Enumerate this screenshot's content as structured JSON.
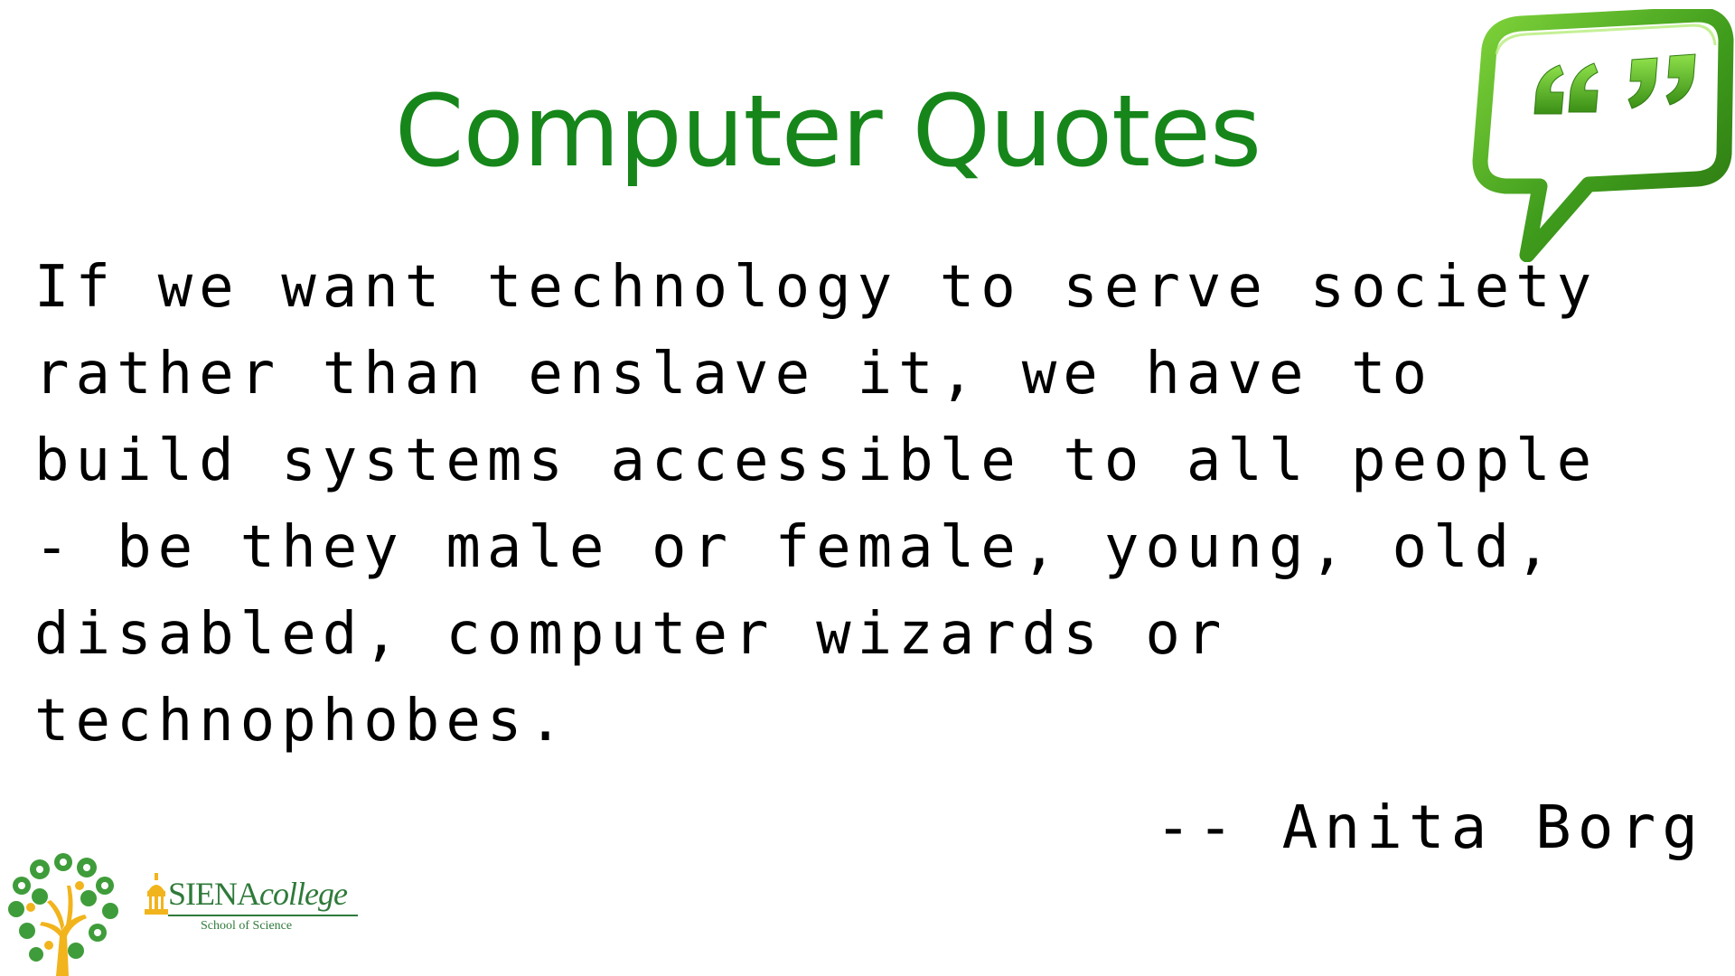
{
  "slide": {
    "title_line": "Computer Quotes",
    "quote_lines": [
      "If we want technology to serve society",
      "rather than enslave it, we have to",
      "build systems accessible to all people",
      "- be they male or female, young, old,",
      "disabled, computer wizards or",
      "technophobes."
    ],
    "attribution": "-- Anita Borg"
  },
  "logos": {
    "college_name_main": "SIENA",
    "college_name_suffix": "college",
    "college_subtitle": "School of Science",
    "bubble_icon": "quote-speech-bubble-icon",
    "tree_icon": "science-tree-icon"
  },
  "colors": {
    "title_green": "#16861a",
    "bubble_green": "#3f9c1c",
    "bubble_green_light": "#6cc52f",
    "logo_green": "#2f7a3a",
    "logo_gold": "#f2b41c"
  }
}
